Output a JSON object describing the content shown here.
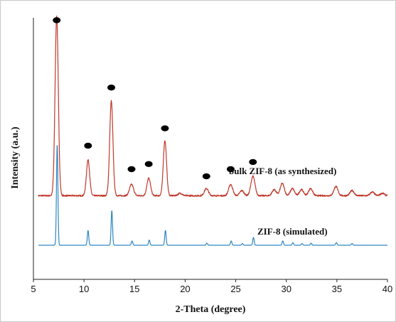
{
  "chart_data": {
    "type": "line",
    "xlabel": "2-Theta (degree)",
    "ylabel": "Intensity (a.u.)",
    "xlim": [
      5,
      40
    ],
    "xticks": [
      5,
      10,
      15,
      20,
      25,
      30,
      35,
      40
    ],
    "yticks_shown": false,
    "grid": false,
    "series": [
      {
        "name": "bulk ZIF-8 (as synthesized)",
        "color": "#c0392b",
        "baseline": 1.0,
        "noise": 0.035,
        "peaks": [
          {
            "x": 7.3,
            "y": 8.8,
            "w": 0.16
          },
          {
            "x": 10.4,
            "y": 1.75,
            "w": 0.16
          },
          {
            "x": 12.7,
            "y": 4.65,
            "w": 0.16
          },
          {
            "x": 14.7,
            "y": 0.55,
            "w": 0.2
          },
          {
            "x": 16.4,
            "y": 0.85,
            "w": 0.18
          },
          {
            "x": 18.0,
            "y": 2.7,
            "w": 0.16
          },
          {
            "x": 19.5,
            "y": 0.12,
            "w": 0.2
          },
          {
            "x": 22.1,
            "y": 0.35,
            "w": 0.2
          },
          {
            "x": 24.5,
            "y": 0.55,
            "w": 0.2
          },
          {
            "x": 25.6,
            "y": 0.25,
            "w": 0.2
          },
          {
            "x": 26.7,
            "y": 0.95,
            "w": 0.2
          },
          {
            "x": 28.8,
            "y": 0.3,
            "w": 0.2
          },
          {
            "x": 29.6,
            "y": 0.6,
            "w": 0.2
          },
          {
            "x": 30.6,
            "y": 0.35,
            "w": 0.2
          },
          {
            "x": 31.5,
            "y": 0.3,
            "w": 0.2
          },
          {
            "x": 32.4,
            "y": 0.35,
            "w": 0.2
          },
          {
            "x": 34.9,
            "y": 0.45,
            "w": 0.2
          },
          {
            "x": 36.5,
            "y": 0.25,
            "w": 0.2
          },
          {
            "x": 38.5,
            "y": 0.18,
            "w": 0.2
          },
          {
            "x": 39.5,
            "y": 0.12,
            "w": 0.2
          }
        ]
      },
      {
        "name": "ZIF-8 (simulated)",
        "color": "#2e86c1",
        "baseline": 0,
        "noise": 0,
        "peaks": [
          {
            "x": 7.35,
            "y": 5.8,
            "w": 0.07
          },
          {
            "x": 10.4,
            "y": 0.85,
            "w": 0.07
          },
          {
            "x": 12.75,
            "y": 2.0,
            "w": 0.07
          },
          {
            "x": 14.75,
            "y": 0.25,
            "w": 0.07
          },
          {
            "x": 16.45,
            "y": 0.3,
            "w": 0.07
          },
          {
            "x": 18.05,
            "y": 0.85,
            "w": 0.07
          },
          {
            "x": 22.15,
            "y": 0.12,
            "w": 0.07
          },
          {
            "x": 24.55,
            "y": 0.25,
            "w": 0.07
          },
          {
            "x": 25.65,
            "y": 0.1,
            "w": 0.07
          },
          {
            "x": 26.75,
            "y": 0.45,
            "w": 0.07
          },
          {
            "x": 29.65,
            "y": 0.25,
            "w": 0.07
          },
          {
            "x": 30.65,
            "y": 0.15,
            "w": 0.07
          },
          {
            "x": 31.55,
            "y": 0.1,
            "w": 0.07
          },
          {
            "x": 32.45,
            "y": 0.12,
            "w": 0.07
          },
          {
            "x": 34.95,
            "y": 0.15,
            "w": 0.07
          },
          {
            "x": 36.5,
            "y": 0.1,
            "w": 0.07
          }
        ]
      }
    ],
    "annotations": [
      {
        "type": "marker",
        "shape": "filled-ellipse",
        "x": 7.3,
        "y": 9.6
      },
      {
        "type": "marker",
        "shape": "filled-ellipse",
        "x": 10.4,
        "y": 3.45
      },
      {
        "type": "marker",
        "shape": "filled-ellipse",
        "x": 12.7,
        "y": 6.3
      },
      {
        "type": "marker",
        "shape": "filled-ellipse",
        "x": 14.7,
        "y": 2.3
      },
      {
        "type": "marker",
        "shape": "filled-ellipse",
        "x": 16.4,
        "y": 2.55
      },
      {
        "type": "marker",
        "shape": "filled-ellipse",
        "x": 18.0,
        "y": 4.3
      },
      {
        "type": "marker",
        "shape": "filled-ellipse",
        "x": 22.1,
        "y": 1.95
      },
      {
        "type": "marker",
        "shape": "filled-ellipse",
        "x": 24.5,
        "y": 2.3
      },
      {
        "type": "marker",
        "shape": "filled-ellipse",
        "x": 26.7,
        "y": 2.65
      }
    ]
  }
}
